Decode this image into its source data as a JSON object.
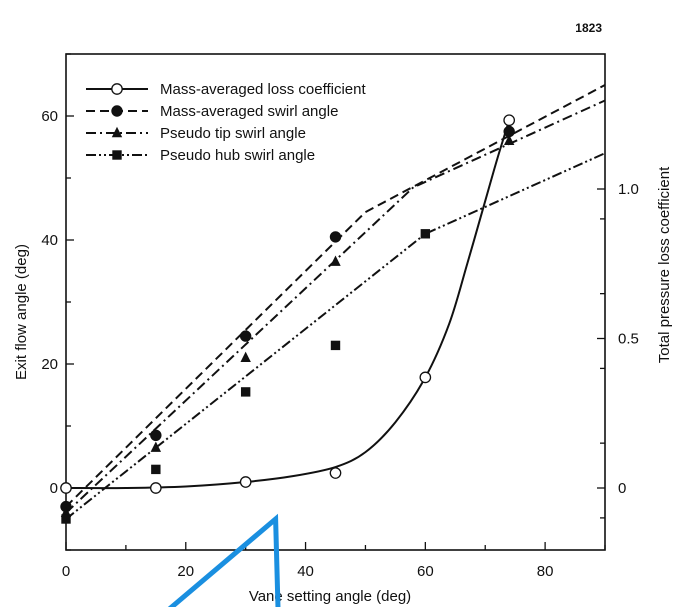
{
  "page_number": "1823",
  "chart_data": {
    "type": "line",
    "xlabel": "Vane setting angle (deg)",
    "ylabel_left": "Exit flow angle (deg)",
    "ylabel_right": "Total pressure loss coefficient",
    "xlim": [
      0,
      90
    ],
    "ylim_left": [
      -10,
      70
    ],
    "ylim_right": [
      -0.143,
      1.0
    ],
    "x_ticks": [
      0,
      20,
      40,
      60,
      80
    ],
    "y_left_ticks": [
      0,
      20,
      40,
      60
    ],
    "y_right_ticks": [
      0,
      0.5,
      1.0
    ],
    "y_right_tick_labels": [
      "0",
      "0.5",
      "1.0"
    ],
    "legend_position": "top-left",
    "series": [
      {
        "name": "Mass-averaged loss coefficient",
        "axis": "right",
        "marker": "circle-open",
        "line": "solid",
        "x": [
          0,
          15,
          30,
          45,
          60,
          74
        ],
        "y": [
          0.0,
          0.0,
          0.02,
          0.05,
          0.37,
          1.23
        ],
        "curve_x": [
          0,
          10,
          20,
          30,
          38,
          45,
          50,
          55,
          60,
          64,
          67,
          70,
          72,
          74
        ],
        "curve_y": [
          0.0,
          0.0,
          0.005,
          0.02,
          0.04,
          0.07,
          0.12,
          0.22,
          0.37,
          0.55,
          0.75,
          0.96,
          1.1,
          1.23
        ]
      },
      {
        "name": "Mass-averaged swirl angle",
        "axis": "left",
        "marker": "circle-filled",
        "line": "dashed",
        "x": [
          0,
          15,
          30,
          45,
          74
        ],
        "y": [
          -3,
          8.5,
          24.5,
          40.5,
          57.5
        ],
        "line_x": [
          0,
          50,
          90
        ],
        "line_y": [
          -3,
          44.5,
          65
        ]
      },
      {
        "name": "Pseudo tip swirl angle",
        "axis": "left",
        "marker": "triangle-filled",
        "line": "dash-dot",
        "x": [
          0,
          15,
          30,
          45,
          74
        ],
        "y": [
          -4,
          6.5,
          21,
          36.5,
          56
        ],
        "line_x": [
          0,
          58,
          90
        ],
        "line_y": [
          -4,
          48.5,
          62.5
        ]
      },
      {
        "name": "Pseudo hub swirl angle",
        "axis": "left",
        "marker": "square-filled",
        "line": "dash-dot-dot",
        "x": [
          0,
          15,
          30,
          45,
          60
        ],
        "y": [
          -5,
          3,
          15.5,
          23,
          41
        ],
        "line_x": [
          0,
          60,
          90
        ],
        "line_y": [
          -5,
          41,
          54
        ]
      }
    ],
    "annotation": {
      "type": "blue-triangle-overlay",
      "color": "#1a8fe0",
      "x": [
        13,
        35,
        35.5
      ],
      "y": [
        -23,
        -5,
        -23
      ]
    }
  }
}
